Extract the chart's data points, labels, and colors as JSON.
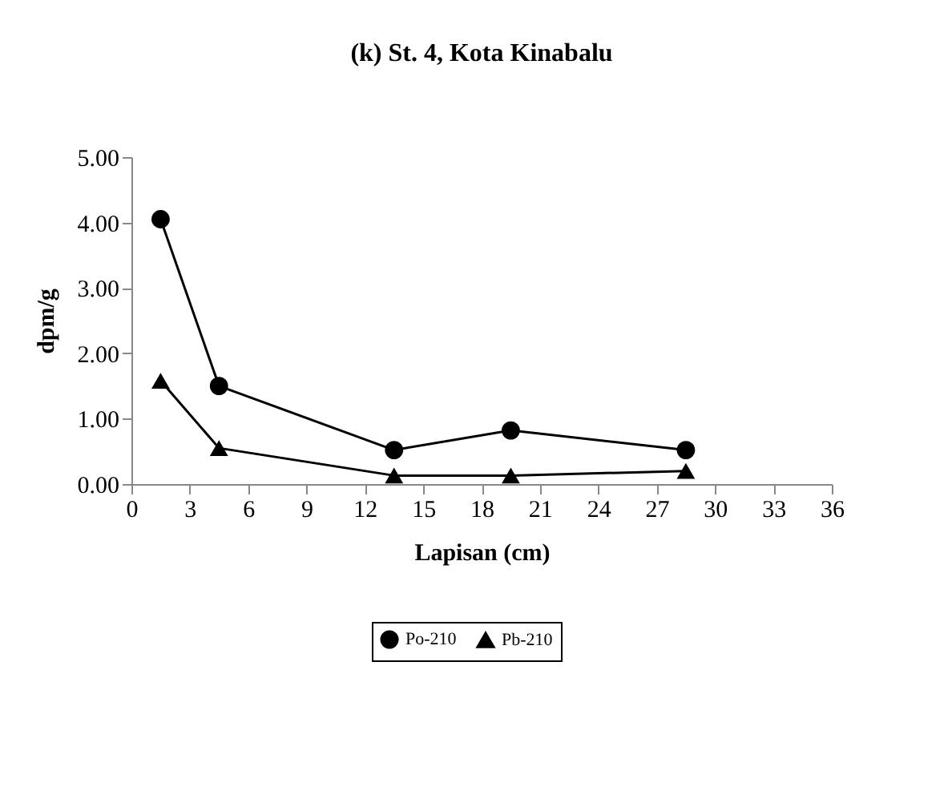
{
  "chart_data": {
    "type": "line",
    "title": "(k) St. 4, Kota Kinabalu",
    "xlabel": "Lapisan (cm)",
    "ylabel": "dpm/g",
    "x": [
      1.5,
      4.5,
      13.5,
      19.5,
      28.5
    ],
    "series": [
      {
        "name": "Po-210",
        "color": "#000000",
        "marker": "circle",
        "values": [
          4.05,
          1.5,
          0.52,
          0.82,
          0.52
        ]
      },
      {
        "name": "Pb-210",
        "color": "#000000",
        "marker": "triangle",
        "values": [
          1.58,
          0.55,
          0.13,
          0.13,
          0.2
        ]
      }
    ],
    "xlim": [
      0,
      36
    ],
    "xticks": [
      0,
      3,
      6,
      9,
      12,
      15,
      18,
      21,
      24,
      27,
      30,
      33,
      36
    ],
    "ylim": [
      0,
      5
    ],
    "yticks": [
      {
        "value": 0,
        "label": "0.00"
      },
      {
        "value": 1,
        "label": "1.00"
      },
      {
        "value": 2,
        "label": "2.00"
      },
      {
        "value": 3,
        "label": "3.00"
      },
      {
        "value": 4,
        "label": "4.00"
      },
      {
        "value": 5,
        "label": "5.00"
      }
    ],
    "grid": false,
    "legend": "bottom",
    "line_style": "solid"
  }
}
